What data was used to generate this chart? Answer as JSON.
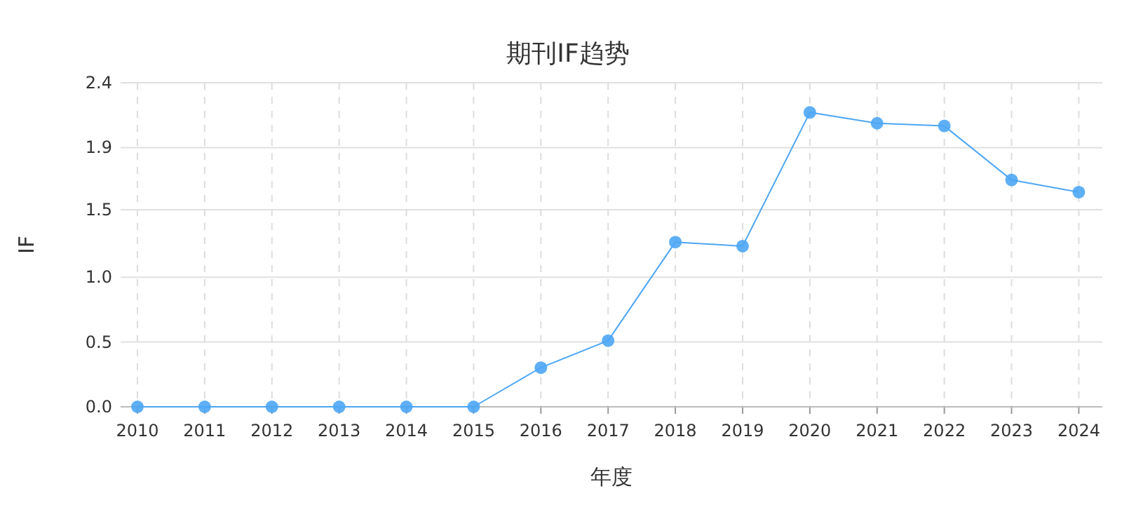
{
  "chart_data": {
    "type": "line",
    "title": "期刊IF趋势",
    "xlabel": "年度",
    "ylabel": "IF",
    "categories": [
      "2010",
      "2011",
      "2012",
      "2013",
      "2014",
      "2015",
      "2016",
      "2017",
      "2018",
      "2019",
      "2020",
      "2021",
      "2022",
      "2023",
      "2024"
    ],
    "series": [
      {
        "color": "#4da6f5",
        "values": [
          0,
          0,
          0,
          0,
          0,
          0,
          0.29,
          0.49,
          1.22,
          1.19,
          2.18,
          2.1,
          2.08,
          1.68,
          1.59
        ]
      }
    ],
    "ylim": [
      0,
      2.4
    ],
    "yticks": [
      {
        "value": 0,
        "label": "0.0"
      },
      {
        "value": 0.48,
        "label": "0.5"
      },
      {
        "value": 0.96,
        "label": "1.0"
      },
      {
        "value": 1.46,
        "label": "1.5"
      },
      {
        "value": 1.92,
        "label": "1.9"
      },
      {
        "value": 2.4,
        "label": "2.4"
      }
    ],
    "grid": true,
    "marker": "circle",
    "line_style": "solid"
  }
}
